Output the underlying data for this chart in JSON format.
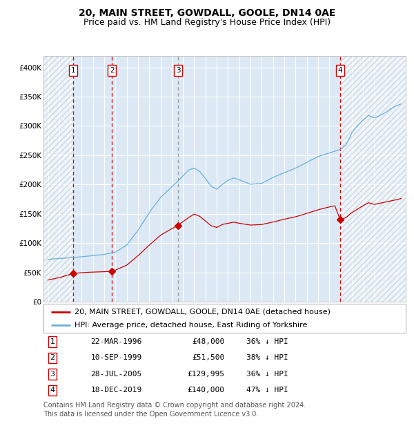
{
  "title": "20, MAIN STREET, GOWDALL, GOOLE, DN14 0AE",
  "subtitle": "Price paid vs. HM Land Registry's House Price Index (HPI)",
  "ylim": [
    0,
    420000
  ],
  "yticks": [
    0,
    50000,
    100000,
    150000,
    200000,
    250000,
    300000,
    350000,
    400000
  ],
  "ytick_labels": [
    "£0",
    "£50K",
    "£100K",
    "£150K",
    "£200K",
    "£250K",
    "£300K",
    "£350K",
    "£400K"
  ],
  "xlim_start": 1993.6,
  "xlim_end": 2025.8,
  "plot_bg_color": "#dce9f5",
  "grid_color": "#ffffff",
  "hpi_color": "#6baed6",
  "price_color": "#cc0000",
  "vline_color_red": "#cc0000",
  "vline_color_gray": "#999999",
  "legend_label_price": "20, MAIN STREET, GOWDALL, GOOLE, DN14 0AE (detached house)",
  "legend_label_hpi": "HPI: Average price, detached house, East Riding of Yorkshire",
  "sales": [
    {
      "num": 1,
      "date_year": 1996.22,
      "price": 48000,
      "label": "22-MAR-1996",
      "price_str": "£48,000",
      "pct": "36% ↓ HPI"
    },
    {
      "num": 2,
      "date_year": 1999.69,
      "price": 51500,
      "label": "10-SEP-1999",
      "price_str": "£51,500",
      "pct": "38% ↓ HPI"
    },
    {
      "num": 3,
      "date_year": 2005.57,
      "price": 129995,
      "label": "28-JUL-2005",
      "price_str": "£129,995",
      "pct": "36% ↓ HPI"
    },
    {
      "num": 4,
      "date_year": 2019.96,
      "price": 140000,
      "label": "18-DEC-2019",
      "price_str": "£140,000",
      "pct": "47% ↓ HPI"
    }
  ],
  "footer": "Contains HM Land Registry data © Crown copyright and database right 2024.\nThis data is licensed under the Open Government Licence v3.0.",
  "title_fontsize": 10,
  "subtitle_fontsize": 9,
  "tick_fontsize": 7.5,
  "legend_fontsize": 8,
  "footer_fontsize": 7,
  "hpi_keypoints": [
    [
      1994.0,
      72000
    ],
    [
      1995.0,
      74000
    ],
    [
      1996.0,
      75500
    ],
    [
      1997.0,
      77000
    ],
    [
      1998.0,
      79000
    ],
    [
      1999.0,
      81000
    ],
    [
      2000.0,
      85000
    ],
    [
      2001.0,
      97000
    ],
    [
      2002.0,
      122000
    ],
    [
      2003.0,
      152000
    ],
    [
      2004.0,
      178000
    ],
    [
      2005.0,
      196000
    ],
    [
      2005.5,
      205000
    ],
    [
      2006.0,
      215000
    ],
    [
      2006.5,
      225000
    ],
    [
      2007.0,
      228000
    ],
    [
      2007.5,
      222000
    ],
    [
      2008.0,
      210000
    ],
    [
      2008.5,
      197000
    ],
    [
      2009.0,
      192000
    ],
    [
      2009.5,
      200000
    ],
    [
      2010.0,
      207000
    ],
    [
      2010.5,
      211000
    ],
    [
      2011.0,
      208000
    ],
    [
      2012.0,
      200000
    ],
    [
      2013.0,
      202000
    ],
    [
      2014.0,
      212000
    ],
    [
      2015.0,
      220000
    ],
    [
      2016.0,
      228000
    ],
    [
      2017.0,
      238000
    ],
    [
      2018.0,
      248000
    ],
    [
      2019.0,
      254000
    ],
    [
      2019.5,
      257000
    ],
    [
      2020.0,
      260000
    ],
    [
      2020.5,
      268000
    ],
    [
      2021.0,
      288000
    ],
    [
      2021.5,
      300000
    ],
    [
      2022.0,
      310000
    ],
    [
      2022.5,
      318000
    ],
    [
      2023.0,
      314000
    ],
    [
      2023.5,
      318000
    ],
    [
      2024.0,
      323000
    ],
    [
      2024.5,
      330000
    ],
    [
      2025.0,
      335000
    ],
    [
      2025.4,
      338000
    ]
  ],
  "price_keypoints": [
    [
      1994.0,
      37000
    ],
    [
      1995.0,
      41000
    ],
    [
      1996.22,
      48000
    ],
    [
      1997.0,
      49500
    ],
    [
      1998.0,
      50500
    ],
    [
      1999.0,
      51000
    ],
    [
      1999.69,
      51500
    ],
    [
      2000.0,
      53500
    ],
    [
      2001.0,
      62000
    ],
    [
      2002.0,
      78000
    ],
    [
      2003.0,
      96000
    ],
    [
      2004.0,
      113000
    ],
    [
      2005.0,
      124000
    ],
    [
      2005.57,
      129995
    ],
    [
      2006.0,
      136000
    ],
    [
      2006.5,
      143000
    ],
    [
      2007.0,
      149000
    ],
    [
      2007.5,
      145000
    ],
    [
      2008.0,
      137000
    ],
    [
      2008.5,
      129000
    ],
    [
      2009.0,
      126000
    ],
    [
      2009.5,
      131000
    ],
    [
      2010.0,
      133000
    ],
    [
      2010.5,
      135000
    ],
    [
      2011.0,
      133000
    ],
    [
      2012.0,
      130000
    ],
    [
      2013.0,
      131000
    ],
    [
      2014.0,
      135000
    ],
    [
      2015.0,
      140000
    ],
    [
      2016.0,
      144000
    ],
    [
      2017.0,
      150000
    ],
    [
      2018.0,
      156000
    ],
    [
      2019.0,
      161000
    ],
    [
      2019.5,
      163000
    ],
    [
      2019.96,
      140000
    ],
    [
      2020.1,
      140000
    ],
    [
      2020.5,
      143000
    ],
    [
      2021.0,
      151000
    ],
    [
      2022.0,
      163000
    ],
    [
      2022.5,
      168000
    ],
    [
      2023.0,
      165000
    ],
    [
      2023.5,
      167000
    ],
    [
      2024.0,
      169000
    ],
    [
      2024.5,
      171000
    ],
    [
      2025.0,
      173000
    ],
    [
      2025.4,
      175000
    ]
  ]
}
